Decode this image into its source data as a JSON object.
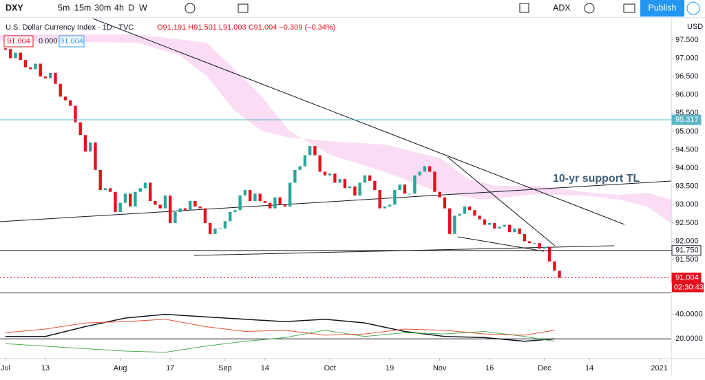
{
  "toolbar": {
    "symbol": "DXY",
    "intervals": [
      "5m",
      "15m",
      "30m",
      "4h",
      "D",
      "W"
    ],
    "indicator": "ADX",
    "publish": "Publish"
  },
  "chart_data": {
    "type": "candlestick",
    "title": "U.S. Dollar Currency Index · 1D · TVC",
    "ohlc_text": "O91.191 H91.501 L91.003 C91.004 −0.309 (−0.34%)",
    "legend_boxes": [
      "91.004",
      "0.000",
      "91.004"
    ],
    "currency": "USD",
    "annotation": "10-yr support TL",
    "up_color": "#26a69a",
    "down_color": "#e5101d",
    "closes": [
      97.25,
      97.0,
      97.15,
      96.95,
      96.75,
      96.7,
      96.85,
      96.5,
      96.45,
      96.6,
      96.3,
      95.95,
      95.85,
      95.7,
      95.25,
      94.9,
      94.45,
      94.7,
      93.95,
      93.4,
      93.45,
      93.35,
      92.8,
      93.05,
      93.3,
      92.95,
      93.35,
      93.45,
      93.6,
      93.1,
      93.0,
      92.9,
      93.25,
      92.5,
      92.8,
      92.9,
      92.85,
      93.1,
      92.95,
      92.9,
      92.5,
      92.2,
      92.35,
      92.35,
      92.55,
      92.8,
      92.85,
      93.25,
      93.4,
      93.1,
      93.3,
      93.1,
      93.05,
      92.9,
      93.2,
      93.0,
      92.95,
      93.6,
      93.95,
      94.05,
      94.35,
      94.6,
      94.35,
      93.9,
      93.8,
      93.85,
      93.6,
      93.7,
      93.45,
      93.5,
      93.25,
      93.6,
      93.8,
      93.65,
      93.4,
      92.9,
      92.95,
      93.0,
      93.4,
      93.55,
      93.3,
      93.3,
      93.8,
      93.9,
      94.05,
      93.9,
      93.35,
      93.2,
      92.9,
      92.2,
      92.7,
      92.75,
      92.95,
      92.85,
      92.7,
      92.6,
      92.45,
      92.5,
      92.35,
      92.4,
      92.45,
      92.25,
      92.35,
      92.2,
      92.0,
      91.95,
      91.95,
      91.8,
      91.85,
      91.45,
      91.2,
      91.004
    ],
    "xlim": [
      -1.1,
      133.4
    ],
    "xticks": [
      {
        "value": 0,
        "label": "Jul"
      },
      {
        "value": 8,
        "label": "13"
      },
      {
        "value": 23,
        "label": "Aug"
      },
      {
        "value": 33,
        "label": "17"
      },
      {
        "value": 44,
        "label": "Sep"
      },
      {
        "value": 52,
        "label": "14"
      },
      {
        "value": 65,
        "label": "Oct"
      },
      {
        "value": 77,
        "label": "19"
      },
      {
        "value": 87,
        "label": "Nov"
      },
      {
        "value": 97,
        "label": "16"
      },
      {
        "value": 108,
        "label": "Dec"
      },
      {
        "value": 117,
        "label": "14"
      },
      {
        "value": 131,
        "label": "2021"
      }
    ],
    "ylim": [
      90.6,
      98.1
    ],
    "yticks": [
      {
        "value": 91.5,
        "label": "91.500"
      },
      {
        "value": 92,
        "label": "92.000"
      },
      {
        "value": 92.5,
        "label": "92.500"
      },
      {
        "value": 93,
        "label": "93.000"
      },
      {
        "value": 93.5,
        "label": "93.500"
      },
      {
        "value": 94,
        "label": "94.000"
      },
      {
        "value": 94.5,
        "label": "94.500"
      },
      {
        "value": 95,
        "label": "95.000"
      },
      {
        "value": 95.5,
        "label": "95.500"
      },
      {
        "value": 96,
        "label": "96.000"
      },
      {
        "value": 96.5,
        "label": "96.500"
      },
      {
        "value": 97,
        "label": "97.000"
      },
      {
        "value": 97.5,
        "label": "97.500"
      }
    ],
    "price_lines": [
      {
        "value": 95.317,
        "label": "95.317",
        "color": "#5bb5c6"
      },
      {
        "value": 91.75,
        "label": "91.750",
        "color": "#131722"
      },
      {
        "value": 91.004,
        "label": "91.004",
        "color": "#e5101d"
      }
    ],
    "countdown": "02:30:43",
    "indicator": {
      "type": "line",
      "x": [
        0,
        8,
        16,
        24,
        32,
        40,
        48,
        56,
        64,
        72,
        80,
        88,
        96,
        104,
        110
      ],
      "series": [
        {
          "color": "#131722",
          "values": [
            22,
            22,
            30,
            37,
            40,
            38,
            36,
            34,
            36,
            33,
            26,
            22,
            21,
            18,
            20
          ]
        },
        {
          "color": "#4caf50",
          "values": [
            16,
            14,
            12,
            10,
            9,
            14,
            18,
            21,
            27,
            22,
            25,
            24,
            26,
            22,
            18
          ]
        },
        {
          "color": "#e5502e",
          "values": [
            25,
            28,
            33,
            34,
            36,
            30,
            26,
            27,
            23,
            24,
            28,
            27,
            24,
            23,
            27
          ]
        }
      ],
      "ylim": [
        4.4,
        57.2
      ],
      "yticks": [
        {
          "value": 20,
          "label": "20.0000"
        },
        {
          "value": 40,
          "label": "40.0000"
        }
      ]
    }
  }
}
